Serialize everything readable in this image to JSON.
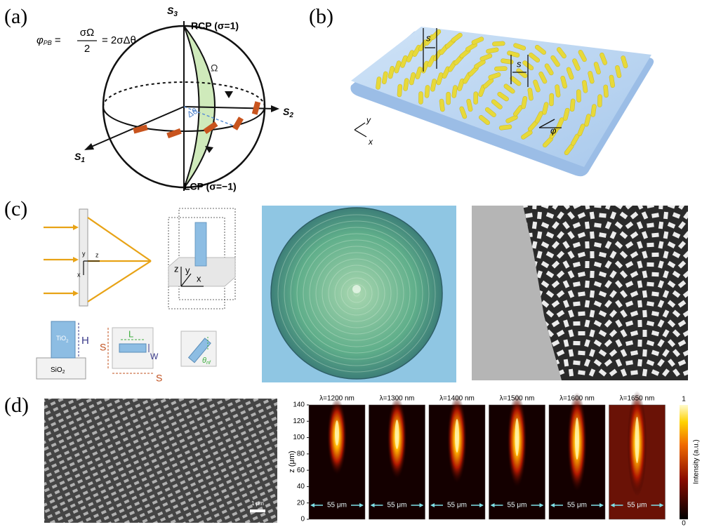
{
  "panels": {
    "a": {
      "label": "(a)",
      "formula": {
        "phi": "φ",
        "sub": "PB",
        "eq1": "=",
        "num": "σΩ",
        "den": "2",
        "eq2": "= 2σΔθ"
      },
      "s3": {
        "s": "S",
        "n": "3"
      },
      "rcp": "RCP (σ=1)",
      "omega": "Ω",
      "s2": {
        "s": "S",
        "n": "2"
      },
      "s1": {
        "s": "S",
        "n": "1"
      },
      "lcp": "LCP (σ=−1)",
      "dtheta": "Δθ"
    },
    "b": {
      "label": "(b)",
      "s_left": "s",
      "s_right": "s",
      "axis_y": "y",
      "axis_x": "x",
      "phi": "φ"
    },
    "c": {
      "label": "(c)",
      "lens_y": "y",
      "lens_z": "z",
      "lens_x": "x",
      "cell_z": "z",
      "cell_y": "y",
      "cell_x": "x",
      "tio2": {
        "t": "TiO",
        "n": "2"
      },
      "h": "H",
      "sio2": {
        "t": "SiO",
        "n": "2"
      },
      "l": "L",
      "w": "W",
      "s_side": "S",
      "s_bottom": "S",
      "theta": {
        "t": "θ",
        "n": "nf"
      }
    },
    "d": {
      "label": "(d)",
      "scale_bar": "1 μm",
      "plots": [
        {
          "lambda": "λ=1200 nm",
          "width": "55 μm"
        },
        {
          "lambda": "λ=1300 nm",
          "width": "55 μm"
        },
        {
          "lambda": "λ=1400 nm",
          "width": "55 μm"
        },
        {
          "lambda": "λ=1500 nm",
          "width": "55 μm"
        },
        {
          "lambda": "λ=1600 nm",
          "width": "55 μm"
        },
        {
          "lambda": "λ=1650 nm",
          "width": "55 μm"
        }
      ],
      "ylabel": "z (μm)",
      "yticks": [
        0,
        20,
        40,
        60,
        80,
        100,
        120,
        140
      ],
      "colorbar": {
        "label": "Intensity (a.u.)",
        "max": "1",
        "min": "0"
      }
    }
  }
}
